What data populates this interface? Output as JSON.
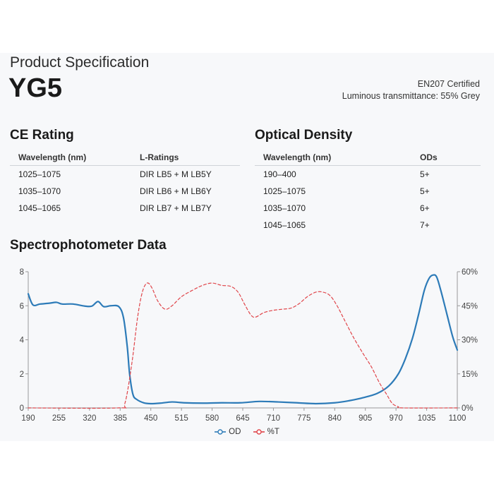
{
  "header": {
    "label": "Product Specification",
    "name": "YG5",
    "certification": "EN207 Certified",
    "transmittance": "Luminous transmittance: 55% Grey"
  },
  "ce_rating": {
    "title": "CE Rating",
    "columns": [
      "Wavelength (nm)",
      "L-Ratings"
    ],
    "rows": [
      [
        "1025–1075",
        "DIR LB5 + M LB5Y"
      ],
      [
        "1035–1070",
        "DIR LB6 + M LB6Y"
      ],
      [
        "1045–1065",
        "DIR LB7 + M LB7Y"
      ]
    ]
  },
  "optical_density": {
    "title": "Optical Density",
    "columns": [
      "Wavelength (nm)",
      "ODs"
    ],
    "rows": [
      [
        "190–400",
        "5+"
      ],
      [
        "1025–1075",
        "5+"
      ],
      [
        "1035–1070",
        "6+"
      ],
      [
        "1045–1065",
        "7+"
      ]
    ]
  },
  "colors": {
    "od": "#2d7bb8",
    "t": "#e0454a",
    "axis": "#999999",
    "text": "#444444"
  },
  "chart_data": {
    "type": "line",
    "title": "Spectrophotometer Data",
    "x_ticks": [
      190,
      255,
      320,
      385,
      450,
      515,
      580,
      645,
      710,
      775,
      840,
      905,
      970,
      1035,
      1100
    ],
    "x_range": [
      190,
      1100
    ],
    "y_left": {
      "range": [
        0,
        8
      ],
      "ticks": [
        0,
        2,
        4,
        6,
        8
      ]
    },
    "y_right": {
      "range": [
        0,
        60
      ],
      "ticks": [
        "0%",
        "15%",
        "30%",
        "45%",
        "60%"
      ]
    },
    "legend_position": "bottom-center",
    "series": [
      {
        "name": "OD",
        "axis": "left",
        "style": "solid",
        "points": [
          [
            190,
            6.7
          ],
          [
            200,
            6.05
          ],
          [
            215,
            6.1
          ],
          [
            235,
            6.15
          ],
          [
            250,
            6.2
          ],
          [
            262,
            6.1
          ],
          [
            285,
            6.1
          ],
          [
            310,
            5.98
          ],
          [
            325,
            5.98
          ],
          [
            338,
            6.25
          ],
          [
            350,
            5.95
          ],
          [
            365,
            6.0
          ],
          [
            382,
            5.95
          ],
          [
            392,
            5.3
          ],
          [
            400,
            3.6
          ],
          [
            405,
            2.0
          ],
          [
            412,
            0.8
          ],
          [
            420,
            0.5
          ],
          [
            435,
            0.3
          ],
          [
            450,
            0.25
          ],
          [
            470,
            0.28
          ],
          [
            495,
            0.35
          ],
          [
            520,
            0.3
          ],
          [
            560,
            0.28
          ],
          [
            600,
            0.3
          ],
          [
            640,
            0.3
          ],
          [
            680,
            0.38
          ],
          [
            720,
            0.35
          ],
          [
            760,
            0.3
          ],
          [
            800,
            0.25
          ],
          [
            840,
            0.3
          ],
          [
            870,
            0.42
          ],
          [
            900,
            0.6
          ],
          [
            930,
            0.85
          ],
          [
            955,
            1.3
          ],
          [
            975,
            2.0
          ],
          [
            990,
            2.9
          ],
          [
            1005,
            4.1
          ],
          [
            1018,
            5.5
          ],
          [
            1030,
            6.9
          ],
          [
            1040,
            7.6
          ],
          [
            1048,
            7.8
          ],
          [
            1056,
            7.7
          ],
          [
            1065,
            6.9
          ],
          [
            1078,
            5.5
          ],
          [
            1090,
            4.2
          ],
          [
            1100,
            3.4
          ]
        ]
      },
      {
        "name": "%T",
        "axis": "right",
        "style": "dashed",
        "points": [
          [
            190,
            0
          ],
          [
            380,
            0
          ],
          [
            395,
            2
          ],
          [
            410,
            20
          ],
          [
            422,
            40
          ],
          [
            432,
            51
          ],
          [
            442,
            55
          ],
          [
            452,
            53
          ],
          [
            465,
            47
          ],
          [
            480,
            43.5
          ],
          [
            495,
            45
          ],
          [
            515,
            49
          ],
          [
            540,
            52
          ],
          [
            560,
            54
          ],
          [
            580,
            55
          ],
          [
            600,
            54
          ],
          [
            620,
            53.5
          ],
          [
            635,
            51
          ],
          [
            648,
            46
          ],
          [
            662,
            41
          ],
          [
            672,
            40
          ],
          [
            690,
            42
          ],
          [
            710,
            43
          ],
          [
            730,
            43.5
          ],
          [
            748,
            44
          ],
          [
            765,
            46
          ],
          [
            782,
            49
          ],
          [
            800,
            51
          ],
          [
            815,
            51
          ],
          [
            830,
            49.5
          ],
          [
            845,
            45
          ],
          [
            860,
            39
          ],
          [
            880,
            31
          ],
          [
            900,
            24
          ],
          [
            918,
            18
          ],
          [
            935,
            11
          ],
          [
            950,
            6
          ],
          [
            962,
            2
          ],
          [
            975,
            0.5
          ],
          [
            985,
            0
          ],
          [
            1100,
            0
          ]
        ]
      }
    ]
  }
}
